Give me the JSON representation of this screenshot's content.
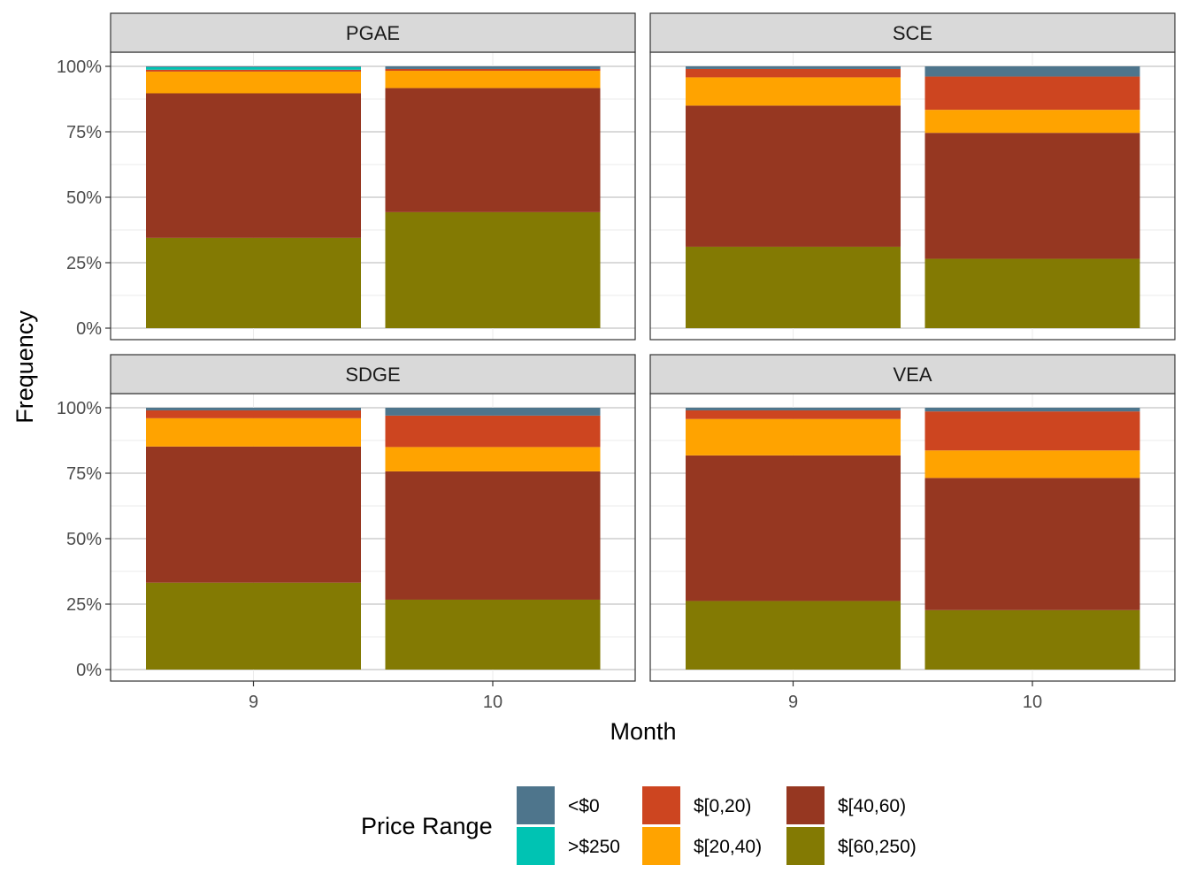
{
  "chart_data": {
    "type": "bar",
    "stacked": true,
    "facets": [
      "PGAE",
      "SCE",
      "SDGE",
      "VEA"
    ],
    "categories": [
      "9",
      "10"
    ],
    "xlabel": "Month",
    "ylabel": "Frequency",
    "ylim": [
      0,
      1
    ],
    "yticks": [
      "0%",
      "25%",
      "50%",
      "75%",
      "100%"
    ],
    "grid": true,
    "legend": {
      "title": "Price Range",
      "position": "bottom",
      "entries": [
        {
          "label": "<$0",
          "color": "#4E758C"
        },
        {
          "label": ">$250",
          "color": "#00C3B3"
        },
        {
          "label": "$[0,20)",
          "color": "#CD4520"
        },
        {
          "label": "$[20,40)",
          "color": "#FFA300"
        },
        {
          "label": "$[40,60)",
          "color": "#963721"
        },
        {
          "label": "$[60,250)",
          "color": "#837A03"
        }
      ]
    },
    "stack_order_bottom_to_top": [
      "$[60,250)",
      "$[40,60)",
      "$[20,40)",
      "$[0,20)",
      ">$250",
      "<$0"
    ],
    "panels": [
      {
        "facet": "PGAE",
        "series": [
          {
            "name": "$[60,250)",
            "values": [
              0.345,
              0.443
            ]
          },
          {
            "name": "$[40,60)",
            "values": [
              0.552,
              0.474
            ]
          },
          {
            "name": "$[20,40)",
            "values": [
              0.083,
              0.066
            ]
          },
          {
            "name": "$[0,20)",
            "values": [
              0.007,
              0.007
            ]
          },
          {
            "name": ">$250",
            "values": [
              0.01,
              0.0
            ]
          },
          {
            "name": "<$0",
            "values": [
              0.003,
              0.01
            ]
          }
        ]
      },
      {
        "facet": "SCE",
        "series": [
          {
            "name": "$[60,250)",
            "values": [
              0.311,
              0.265
            ]
          },
          {
            "name": "$[40,60)",
            "values": [
              0.539,
              0.481
            ]
          },
          {
            "name": "$[20,40)",
            "values": [
              0.108,
              0.088
            ]
          },
          {
            "name": "$[0,20)",
            "values": [
              0.032,
              0.127
            ]
          },
          {
            "name": ">$250",
            "values": [
              0.0,
              0.0
            ]
          },
          {
            "name": "<$0",
            "values": [
              0.01,
              0.039
            ]
          }
        ]
      },
      {
        "facet": "SDGE",
        "series": [
          {
            "name": "$[60,250)",
            "values": [
              0.332,
              0.267
            ]
          },
          {
            "name": "$[40,60)",
            "values": [
              0.52,
              0.49
            ]
          },
          {
            "name": "$[20,40)",
            "values": [
              0.108,
              0.093
            ]
          },
          {
            "name": "$[0,20)",
            "values": [
              0.03,
              0.12
            ]
          },
          {
            "name": ">$250",
            "values": [
              0.0,
              0.0
            ]
          },
          {
            "name": "<$0",
            "values": [
              0.01,
              0.03
            ]
          }
        ]
      },
      {
        "facet": "VEA",
        "series": [
          {
            "name": "$[60,250)",
            "values": [
              0.262,
              0.227
            ]
          },
          {
            "name": "$[40,60)",
            "values": [
              0.556,
              0.505
            ]
          },
          {
            "name": "$[20,40)",
            "values": [
              0.139,
              0.105
            ]
          },
          {
            "name": "$[0,20)",
            "values": [
              0.033,
              0.149
            ]
          },
          {
            "name": ">$250",
            "values": [
              0.0,
              0.0
            ]
          },
          {
            "name": "<$0",
            "values": [
              0.01,
              0.014
            ]
          }
        ]
      }
    ]
  }
}
